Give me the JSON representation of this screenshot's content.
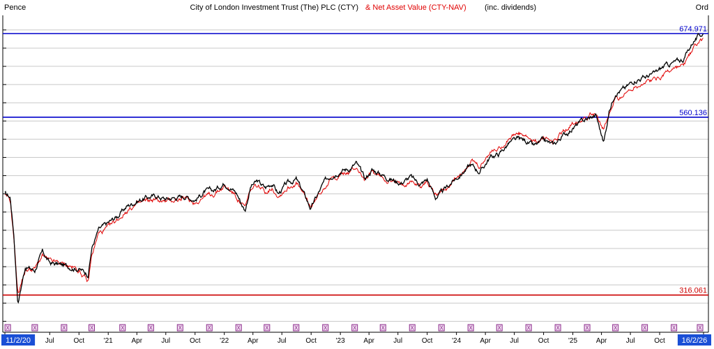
{
  "header": {
    "left_label": "Pence",
    "title_main": "City of London Investment Trust (The) PLC (CTY)",
    "title_nav": "& Net Asset Value (CTY-NAV)",
    "title_suffix": "(inc. dividends)",
    "right_label": "Ord"
  },
  "colors": {
    "price": "#000000",
    "nav": "#e00000",
    "level_blue": "#0000cc",
    "level_red": "#cc0000",
    "grid": "#c8c8c8",
    "date_start_bg": "#1a4fd6",
    "dividend_marker": "#8a2a8a"
  },
  "dividend_marker_symbol": "X",
  "chart_data": {
    "type": "line",
    "title": "City of London Investment Trust (The) PLC (CTY) & Net Asset Value (CTY-NAV) (inc. dividends)",
    "ylabel": "Pence",
    "ylim": [
      265,
      700
    ],
    "x_tick_labels": [
      "11/2/20",
      "Jul",
      "Oct",
      "'21",
      "Apr",
      "Jul",
      "Oct",
      "'22",
      "Apr",
      "Jul",
      "Oct",
      "'23",
      "Apr",
      "Jul",
      "Oct",
      "'24",
      "Apr",
      "Jul",
      "Oct",
      "'25",
      "Apr",
      "Jul",
      "Oct",
      "16/2/26"
    ],
    "horizontal_levels": [
      {
        "value": 674.971,
        "label": "674.971",
        "color": "#0000cc"
      },
      {
        "value": 560.136,
        "label": "560.136",
        "color": "#0000cc"
      },
      {
        "value": 316.061,
        "label": "316.061",
        "color": "#cc0000"
      }
    ],
    "series": [
      {
        "name": "CTY",
        "color": "#000000",
        "x": [
          "2020-02-11",
          "2020-02-28",
          "2020-03-10",
          "2020-03-23",
          "2020-04-15",
          "2020-05-15",
          "2020-06-08",
          "2020-07-01",
          "2020-08-01",
          "2020-09-01",
          "2020-10-01",
          "2020-10-30",
          "2020-11-10",
          "2020-12-01",
          "2021-01-01",
          "2021-02-01",
          "2021-03-01",
          "2021-04-01",
          "2021-05-01",
          "2021-06-01",
          "2021-07-01",
          "2021-08-01",
          "2021-09-01",
          "2021-10-01",
          "2021-11-01",
          "2021-12-01",
          "2022-01-01",
          "2022-01-20",
          "2022-02-10",
          "2022-03-07",
          "2022-03-25",
          "2022-04-15",
          "2022-05-10",
          "2022-06-01",
          "2022-06-20",
          "2022-07-15",
          "2022-08-15",
          "2022-09-05",
          "2022-09-30",
          "2022-10-15",
          "2022-11-10",
          "2022-12-01",
          "2023-01-01",
          "2023-02-01",
          "2023-02-20",
          "2023-03-20",
          "2023-04-10",
          "2023-05-10",
          "2023-06-10",
          "2023-07-10",
          "2023-08-10",
          "2023-09-10",
          "2023-10-01",
          "2023-10-27",
          "2023-11-20",
          "2023-12-15",
          "2024-01-15",
          "2024-02-15",
          "2024-03-15",
          "2024-04-15",
          "2024-05-15",
          "2024-06-15",
          "2024-07-15",
          "2024-08-05",
          "2024-09-01",
          "2024-10-01",
          "2024-11-01",
          "2024-12-01",
          "2025-01-01",
          "2025-02-01",
          "2025-03-15",
          "2025-04-08",
          "2025-04-25",
          "2025-05-15",
          "2025-06-15",
          "2025-07-15",
          "2025-08-15",
          "2025-09-15",
          "2025-10-15",
          "2025-11-15",
          "2025-12-15",
          "2026-01-15",
          "2026-02-16"
        ],
        "y": [
          455,
          450,
          400,
          305,
          355,
          350,
          375,
          360,
          358,
          355,
          352,
          345,
          380,
          405,
          415,
          425,
          438,
          445,
          450,
          452,
          448,
          450,
          452,
          447,
          458,
          460,
          470,
          465,
          455,
          432,
          465,
          472,
          463,
          470,
          455,
          468,
          475,
          458,
          435,
          448,
          470,
          480,
          487,
          490,
          497,
          475,
          488,
          482,
          475,
          470,
          478,
          468,
          475,
          450,
          458,
          470,
          482,
          495,
          485,
          505,
          510,
          525,
          530,
          528,
          520,
          528,
          522,
          535,
          545,
          555,
          563,
          525,
          568,
          595,
          600,
          612,
          615,
          620,
          630,
          635,
          640,
          665,
          676
        ]
      },
      {
        "name": "CTY-NAV",
        "color": "#e00000",
        "x": [
          "2020-02-11",
          "2020-02-28",
          "2020-03-10",
          "2020-03-23",
          "2020-04-15",
          "2020-05-15",
          "2020-06-08",
          "2020-07-01",
          "2020-08-01",
          "2020-09-01",
          "2020-10-01",
          "2020-10-30",
          "2020-11-10",
          "2020-12-01",
          "2021-01-01",
          "2021-02-01",
          "2021-03-01",
          "2021-04-01",
          "2021-05-01",
          "2021-06-01",
          "2021-07-01",
          "2021-08-01",
          "2021-09-01",
          "2021-10-01",
          "2021-11-01",
          "2021-12-01",
          "2022-01-01",
          "2022-01-20",
          "2022-02-10",
          "2022-03-07",
          "2022-03-25",
          "2022-04-15",
          "2022-05-10",
          "2022-06-01",
          "2022-06-20",
          "2022-07-15",
          "2022-08-15",
          "2022-09-05",
          "2022-09-30",
          "2022-10-15",
          "2022-11-10",
          "2022-12-01",
          "2023-01-01",
          "2023-02-01",
          "2023-02-20",
          "2023-03-20",
          "2023-04-10",
          "2023-05-10",
          "2023-06-10",
          "2023-07-10",
          "2023-08-10",
          "2023-09-10",
          "2023-10-01",
          "2023-10-27",
          "2023-11-20",
          "2023-12-15",
          "2024-01-15",
          "2024-02-15",
          "2024-03-15",
          "2024-04-15",
          "2024-05-15",
          "2024-06-15",
          "2024-07-15",
          "2024-08-05",
          "2024-09-01",
          "2024-10-01",
          "2024-11-01",
          "2024-12-01",
          "2025-01-01",
          "2025-02-01",
          "2025-03-15",
          "2025-04-08",
          "2025-04-25",
          "2025-05-15",
          "2025-06-15",
          "2025-07-15",
          "2025-08-15",
          "2025-09-15",
          "2025-10-15",
          "2025-11-15",
          "2025-12-15",
          "2026-01-15",
          "2026-02-16"
        ],
        "y": [
          452,
          445,
          395,
          318,
          350,
          352,
          370,
          362,
          360,
          356,
          350,
          333,
          370,
          400,
          408,
          420,
          432,
          440,
          445,
          447,
          444,
          447,
          448,
          443,
          452,
          455,
          465,
          460,
          450,
          435,
          460,
          466,
          458,
          464,
          452,
          462,
          470,
          455,
          437,
          446,
          465,
          474,
          482,
          484,
          492,
          473,
          484,
          478,
          472,
          467,
          474,
          465,
          472,
          455,
          460,
          468,
          484,
          500,
          490,
          512,
          518,
          532,
          537,
          533,
          525,
          532,
          527,
          540,
          552,
          560,
          567,
          542,
          562,
          585,
          592,
          603,
          608,
          612,
          620,
          628,
          630,
          655,
          668
        ]
      }
    ],
    "dividend_dates": [
      "2020-02-20",
      "2020-05-15",
      "2020-08-15",
      "2020-11-10",
      "2021-02-15",
      "2021-05-15",
      "2021-08-15",
      "2021-11-15",
      "2022-02-15",
      "2022-05-15",
      "2022-08-15",
      "2022-11-15",
      "2023-02-15",
      "2023-05-15",
      "2023-08-15",
      "2023-11-15",
      "2024-02-15",
      "2024-05-15",
      "2024-08-15",
      "2024-11-15",
      "2025-02-15",
      "2025-05-15",
      "2025-08-15",
      "2025-11-15",
      "2026-02-05"
    ]
  }
}
